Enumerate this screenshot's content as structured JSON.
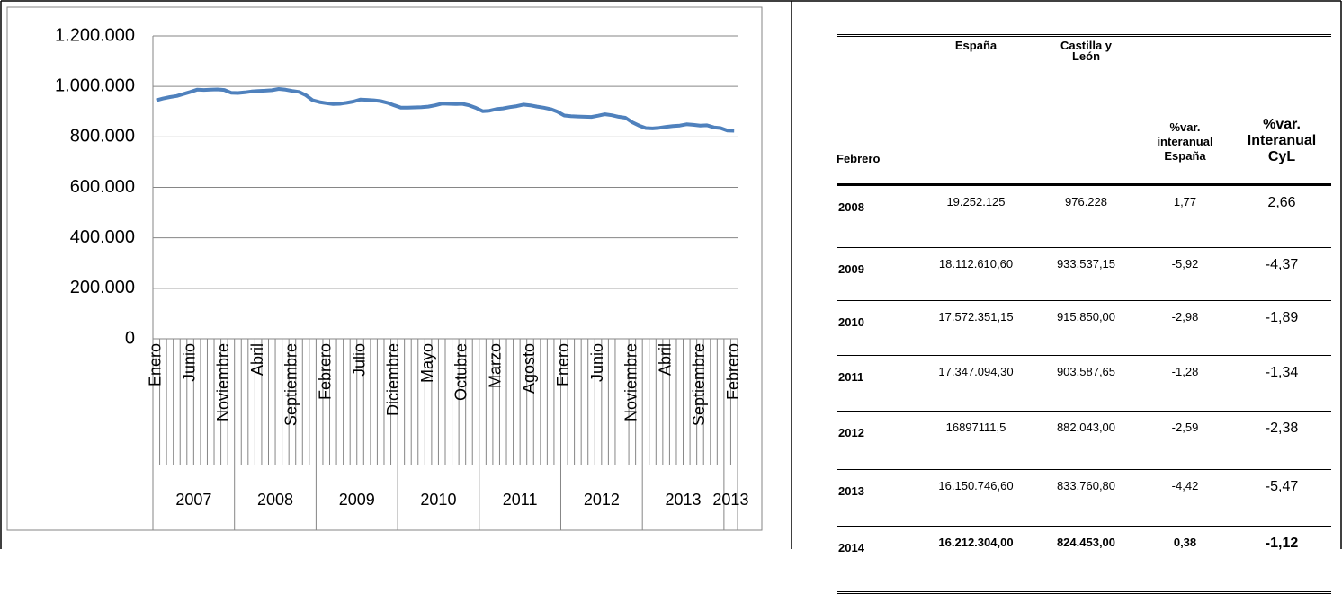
{
  "chart_data": {
    "type": "line",
    "categories": [
      "Enero",
      null,
      null,
      null,
      null,
      "Junio",
      null,
      null,
      null,
      null,
      "Noviembre",
      null,
      null,
      null,
      null,
      "Abril",
      null,
      null,
      null,
      null,
      "Septiembre",
      null,
      null,
      null,
      null,
      "Febrero",
      null,
      null,
      null,
      null,
      "Julio",
      null,
      null,
      null,
      null,
      "Diciembre",
      null,
      null,
      null,
      null,
      "Mayo",
      null,
      null,
      null,
      null,
      "Octubre",
      null,
      null,
      null,
      null,
      "Marzo",
      null,
      null,
      null,
      null,
      "Agosto",
      null,
      null,
      null,
      null,
      "Enero",
      null,
      null,
      null,
      null,
      "Junio",
      null,
      null,
      null,
      null,
      "Noviembre",
      null,
      null,
      null,
      null,
      "Abril",
      null,
      null,
      null,
      null,
      "Septiembre",
      null,
      null,
      null,
      null,
      "Febrero"
    ],
    "groups": [
      "2007",
      "2008",
      "2009",
      "2010",
      "2011",
      "2012",
      "2013",
      "2013"
    ],
    "series": [
      {
        "color": "#4f81bd",
        "values": [
          945000,
          952000,
          958000,
          962000,
          970000,
          978000,
          987000,
          986000,
          987000,
          988000,
          986000,
          975000,
          974000,
          976228,
          980000,
          982000,
          983000,
          985000,
          990000,
          987000,
          982000,
          978000,
          965000,
          945000,
          938000,
          933537,
          930000,
          931000,
          935000,
          940000,
          948000,
          947000,
          945000,
          942000,
          935000,
          925000,
          916000,
          915850,
          917000,
          918000,
          920000,
          925000,
          932000,
          931000,
          930000,
          931000,
          925000,
          915000,
          902000,
          903588,
          910000,
          913000,
          918000,
          922000,
          928000,
          925000,
          920000,
          916000,
          910000,
          900000,
          885000,
          882043,
          881000,
          880000,
          879000,
          884000,
          890000,
          886000,
          880000,
          876000,
          858000,
          845000,
          835000,
          833761,
          836000,
          840000,
          843000,
          845000,
          850000,
          848000,
          845000,
          846000,
          838000,
          835000,
          825000,
          824453
        ]
      }
    ],
    "ylim": [
      0,
      1200000
    ],
    "yticks": [
      0,
      {
        "value": 200000,
        "label": "200.000"
      },
      {
        "value": 400000,
        "label": "400.000"
      },
      {
        "value": 600000,
        "label": "600.000"
      },
      {
        "value": 800000,
        "label": "800.000"
      },
      {
        "value": 1000000,
        "label": "1.000.000"
      },
      {
        "value": 1200000,
        "label": "1.200.000"
      }
    ],
    "grid": true
  },
  "table": {
    "header": [
      "Febrero",
      "España",
      "Castilla y León",
      "%var. interanual España",
      "%var. Interanual CyL"
    ],
    "rows": [
      [
        "2008",
        "19.252.125",
        "976.228",
        "1,77",
        "2,66"
      ],
      [
        "2009",
        "18.112.610,60",
        "933.537,15",
        "-5,92",
        "-4,37"
      ],
      [
        "2010",
        "17.572.351,15",
        "915.850,00",
        "-2,98",
        "-1,89"
      ],
      [
        "2011",
        "17.347.094,30",
        "903.587,65",
        "-1,28",
        "-1,34"
      ],
      [
        "2012",
        "16897111,5",
        "882.043,00",
        "-2,59",
        "-2,38"
      ],
      [
        "2013",
        "16.150.746,60",
        "833.760,80",
        "-4,42",
        "-5,47"
      ],
      [
        "2014",
        "16.212.304,00",
        "824.453,00",
        "0,38",
        "-1,12"
      ]
    ]
  }
}
